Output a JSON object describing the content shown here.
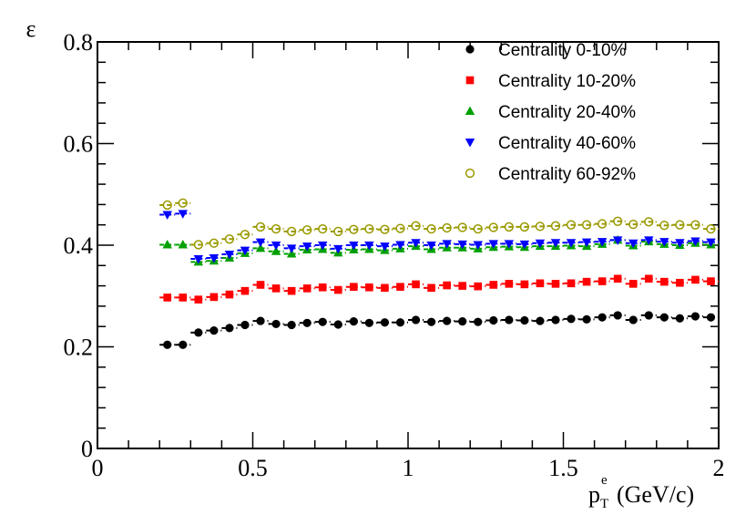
{
  "chart_data": {
    "type": "scatter",
    "title": "",
    "xlabel": {
      "main": "p",
      "sub": "T",
      "sup": "e",
      "unit": "(GeV/c)"
    },
    "ylabel": "ε",
    "xlim": [
      0,
      2
    ],
    "ylim": [
      0,
      0.8
    ],
    "x_ticks": [
      {
        "value": 0,
        "label": "0"
      },
      {
        "value": 0.5,
        "label": "0.5"
      },
      {
        "value": 1,
        "label": "1"
      },
      {
        "value": 1.5,
        "label": "1.5"
      },
      {
        "value": 2,
        "label": "2"
      }
    ],
    "y_ticks": [
      {
        "value": 0,
        "label": "0"
      },
      {
        "value": 0.2,
        "label": "0.2"
      },
      {
        "value": 0.4,
        "label": "0.4"
      },
      {
        "value": 0.6,
        "label": "0.6"
      },
      {
        "value": 0.8,
        "label": "0.8"
      }
    ],
    "grid": false,
    "legend_position": "top-right",
    "x": [
      0.225,
      0.275,
      0.325,
      0.375,
      0.425,
      0.475,
      0.525,
      0.575,
      0.625,
      0.675,
      0.725,
      0.775,
      0.825,
      0.875,
      0.925,
      0.975,
      1.025,
      1.075,
      1.125,
      1.175,
      1.225,
      1.275,
      1.325,
      1.375,
      1.425,
      1.475,
      1.525,
      1.575,
      1.625,
      1.675,
      1.725,
      1.775,
      1.825,
      1.875,
      1.925,
      1.975
    ],
    "series": [
      {
        "name": "Centrality 0-10%",
        "marker": "circle-filled",
        "color": "#000000",
        "values": [
          0.204,
          0.204,
          0.228,
          0.232,
          0.237,
          0.243,
          0.251,
          0.245,
          0.243,
          0.247,
          0.249,
          0.244,
          0.25,
          0.247,
          0.248,
          0.248,
          0.253,
          0.249,
          0.251,
          0.25,
          0.249,
          0.252,
          0.253,
          0.252,
          0.251,
          0.253,
          0.255,
          0.254,
          0.258,
          0.262,
          0.253,
          0.262,
          0.258,
          0.256,
          0.26,
          0.258
        ]
      },
      {
        "name": "Centrality 10-20%",
        "marker": "square-filled",
        "color": "#ff0000",
        "values": [
          0.297,
          0.297,
          0.293,
          0.298,
          0.303,
          0.31,
          0.322,
          0.315,
          0.31,
          0.315,
          0.317,
          0.312,
          0.318,
          0.317,
          0.316,
          0.318,
          0.323,
          0.316,
          0.321,
          0.32,
          0.319,
          0.322,
          0.324,
          0.323,
          0.325,
          0.324,
          0.325,
          0.328,
          0.329,
          0.334,
          0.324,
          0.334,
          0.328,
          0.326,
          0.332,
          0.329
        ]
      },
      {
        "name": "Centrality 20-40%",
        "marker": "triangle-up-filled",
        "color": "#00a000",
        "values": [
          0.401,
          0.401,
          0.367,
          0.369,
          0.375,
          0.384,
          0.394,
          0.388,
          0.383,
          0.391,
          0.392,
          0.385,
          0.391,
          0.392,
          0.39,
          0.393,
          0.398,
          0.392,
          0.395,
          0.395,
          0.393,
          0.396,
          0.397,
          0.396,
          0.398,
          0.398,
          0.399,
          0.398,
          0.402,
          0.41,
          0.399,
          0.407,
          0.402,
          0.4,
          0.404,
          0.401
        ]
      },
      {
        "name": "Centrality 40-60%",
        "marker": "triangle-down-filled",
        "color": "#0000ff",
        "values": [
          0.46,
          0.462,
          0.373,
          0.375,
          0.382,
          0.39,
          0.406,
          0.4,
          0.394,
          0.398,
          0.4,
          0.393,
          0.4,
          0.4,
          0.398,
          0.401,
          0.405,
          0.4,
          0.403,
          0.402,
          0.401,
          0.403,
          0.403,
          0.402,
          0.404,
          0.405,
          0.405,
          0.406,
          0.407,
          0.41,
          0.404,
          0.41,
          0.407,
          0.405,
          0.408,
          0.406
        ]
      },
      {
        "name": "Centrality 60-92%",
        "marker": "circle-open",
        "color": "#999900",
        "values": [
          0.479,
          0.483,
          0.401,
          0.404,
          0.412,
          0.421,
          0.436,
          0.432,
          0.427,
          0.43,
          0.432,
          0.427,
          0.431,
          0.432,
          0.431,
          0.433,
          0.438,
          0.432,
          0.434,
          0.435,
          0.432,
          0.435,
          0.436,
          0.436,
          0.437,
          0.438,
          0.44,
          0.44,
          0.442,
          0.447,
          0.441,
          0.446,
          0.439,
          0.44,
          0.44,
          0.432
        ]
      }
    ]
  }
}
